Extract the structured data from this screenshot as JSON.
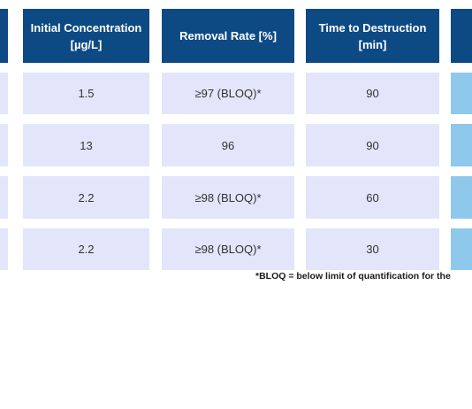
{
  "table": {
    "headers": [
      {
        "line1": "Initial Concentration",
        "line2": "[µg/L]"
      },
      {
        "line1": "Removal Rate [%]",
        "line2": ""
      },
      {
        "line1": "Time to Destruction",
        "line2": "[min]"
      }
    ],
    "rows": [
      {
        "initial_concentration": "1.5",
        "removal_rate": "≥97 (BLOQ)*",
        "time_to_destruction": "90"
      },
      {
        "initial_concentration": "13",
        "removal_rate": "96",
        "time_to_destruction": "90"
      },
      {
        "initial_concentration": "2.2",
        "removal_rate": "≥98 (BLOQ)*",
        "time_to_destruction": "60"
      },
      {
        "initial_concentration": "2.2",
        "removal_rate": "≥98 (BLOQ)*",
        "time_to_destruction": "30"
      }
    ],
    "footnote": "*BLOQ = below limit of quantification for the"
  },
  "colors": {
    "header_bg": "#0d4a84",
    "cell_bg": "#e3e5fa",
    "accent_bg": "#8ec8ea"
  }
}
